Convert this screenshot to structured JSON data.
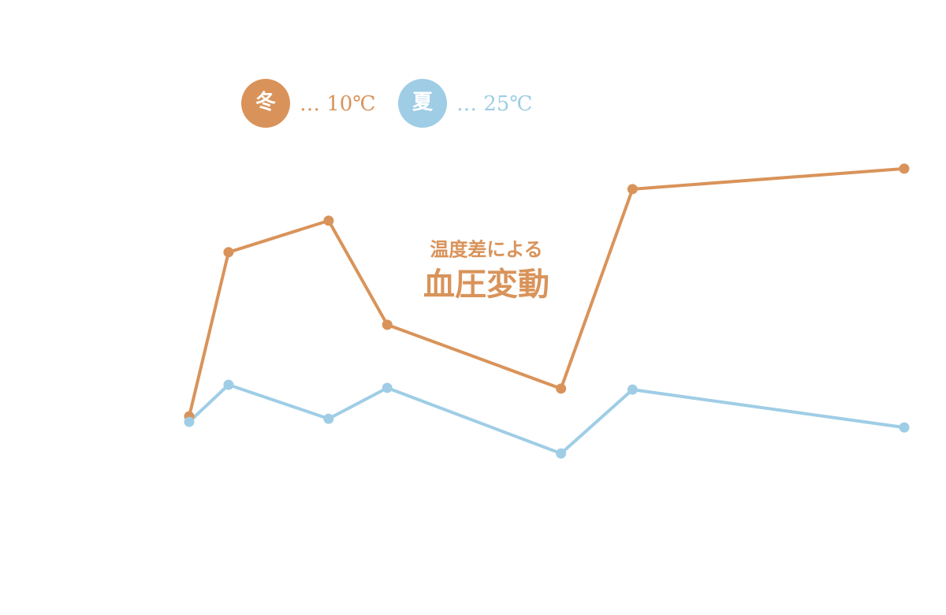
{
  "chart_data": {
    "type": "line",
    "annotation": [
      "温度差による",
      "血圧変動"
    ],
    "x": [
      0,
      5.5,
      19.5,
      27.7,
      52,
      62,
      100
    ],
    "xlim": [
      0,
      100
    ],
    "ylim": [
      0,
      100
    ],
    "series": [
      {
        "name": "冬",
        "note": "… 10℃",
        "color": "#d9935a",
        "values": [
          20.9,
          68.2,
          77.3,
          47.3,
          28.9,
          86.4,
          92.3
        ]
      },
      {
        "name": "夏",
        "note": "… 25℃",
        "color": "#9fcde6",
        "values": [
          19.3,
          30.0,
          20.2,
          29.1,
          10.2,
          28.6,
          17.7
        ]
      }
    ]
  }
}
